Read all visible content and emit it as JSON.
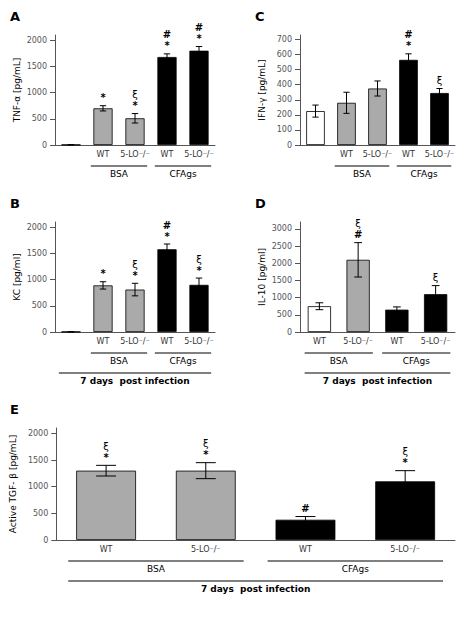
{
  "chart_data": [
    {
      "type": "bar",
      "title": "A",
      "ylabel": "TNF-α [pg/mL]",
      "categories": [
        null,
        "WT",
        "5-LO⁻/⁻",
        "WT",
        "5-LO⁻/⁻"
      ],
      "values": [
        5,
        700,
        510,
        1680,
        1800
      ],
      "errors": [
        2,
        50,
        90,
        60,
        80
      ],
      "colors": [
        "#ffffff",
        "#aaaaaa",
        "#aaaaaa",
        "#000000",
        "#000000"
      ],
      "ylim": [
        0,
        2100
      ],
      "yticks": [
        0,
        500,
        1000,
        1500,
        2000
      ],
      "grid": false,
      "symbols": [
        [],
        [
          "*"
        ],
        [
          "*",
          "ξ"
        ],
        [
          "*",
          "#"
        ],
        [
          "*",
          "#"
        ]
      ],
      "groups": [
        {
          "label": "BSA",
          "bars": [
            1,
            2
          ]
        },
        {
          "label": "CFAgs",
          "bars": [
            3,
            4
          ]
        }
      ]
    },
    {
      "type": "bar",
      "title": "B",
      "ylabel": "KC [pg/ml]",
      "categories": [
        null,
        "WT",
        "5-LO⁻/⁻",
        "WT",
        "5-LO⁻/⁻"
      ],
      "values": [
        5,
        890,
        810,
        1580,
        900
      ],
      "errors": [
        2,
        70,
        120,
        100,
        130
      ],
      "colors": [
        "#ffffff",
        "#aaaaaa",
        "#aaaaaa",
        "#000000",
        "#000000"
      ],
      "ylim": [
        0,
        2100
      ],
      "yticks": [
        0,
        500,
        1000,
        1500,
        2000
      ],
      "grid": false,
      "symbols": [
        [],
        [
          "*"
        ],
        [
          "*",
          "ξ"
        ],
        [
          "*",
          "#"
        ],
        [
          "*",
          "ξ"
        ]
      ],
      "groups": [
        {
          "label": "BSA",
          "bars": [
            1,
            2
          ]
        },
        {
          "label": "CFAgs",
          "bars": [
            3,
            4
          ]
        }
      ],
      "caption": "7 days  post infection"
    },
    {
      "type": "bar",
      "title": "C",
      "ylabel": "IFN-γ [pg/mL]",
      "categories": [
        null,
        "WT",
        "5-LO⁻/⁻",
        "WT",
        "5-LO⁻/⁻"
      ],
      "values": [
        225,
        280,
        375,
        565,
        345
      ],
      "errors": [
        40,
        70,
        50,
        40,
        30
      ],
      "colors": [
        "#ffffff",
        "#aaaaaa",
        "#aaaaaa",
        "#000000",
        "#000000"
      ],
      "ylim": [
        0,
        730
      ],
      "yticks": [
        0,
        100,
        200,
        300,
        400,
        500,
        600,
        700
      ],
      "grid": false,
      "symbols": [
        [],
        [],
        [],
        [
          "*",
          "#"
        ],
        [
          "ξ"
        ]
      ],
      "groups": [
        {
          "label": "BSA",
          "bars": [
            1,
            2
          ]
        },
        {
          "label": "CFAgs",
          "bars": [
            3,
            4
          ]
        }
      ]
    },
    {
      "type": "bar",
      "title": "D",
      "ylabel": "IL-10 [pg/ml]",
      "categories": [
        "WT",
        "5-LO⁻/⁻",
        "WT",
        "5-LO⁻/⁻"
      ],
      "values": [
        750,
        2100,
        650,
        1100
      ],
      "errors": [
        100,
        500,
        80,
        250
      ],
      "colors": [
        "#ffffff",
        "#aaaaaa",
        "#000000",
        "#000000"
      ],
      "ylim": [
        0,
        3200
      ],
      "yticks": [
        0,
        500,
        1000,
        1500,
        2000,
        2500,
        3000
      ],
      "grid": false,
      "symbols": [
        [],
        [
          "#",
          "ξ"
        ],
        [],
        [
          "ξ"
        ]
      ],
      "groups": [
        {
          "label": "BSA",
          "bars": [
            0,
            1
          ]
        },
        {
          "label": "CFAgs",
          "bars": [
            2,
            3
          ]
        }
      ],
      "caption": "7 days  post infection"
    },
    {
      "type": "bar",
      "title": "E",
      "ylabel": "Active TGF- β [pg/mL]",
      "categories": [
        "WT",
        "5-LO⁻/⁻",
        "WT",
        "5-LO⁻/⁻"
      ],
      "values": [
        1300,
        1300,
        380,
        1100
      ],
      "errors": [
        100,
        150,
        60,
        200
      ],
      "colors": [
        "#aaaaaa",
        "#aaaaaa",
        "#000000",
        "#000000"
      ],
      "ylim": [
        0,
        2100
      ],
      "yticks": [
        0,
        500,
        1000,
        1500,
        2000
      ],
      "grid": false,
      "symbols": [
        [
          "*",
          "ξ"
        ],
        [
          "*",
          "ξ"
        ],
        [
          "#"
        ],
        [
          "*",
          "ξ"
        ]
      ],
      "groups": [
        {
          "label": "BSA",
          "bars": [
            0,
            1
          ]
        },
        {
          "label": "CFAgs",
          "bars": [
            2,
            3
          ]
        }
      ],
      "caption": "7 days  post infection"
    }
  ]
}
